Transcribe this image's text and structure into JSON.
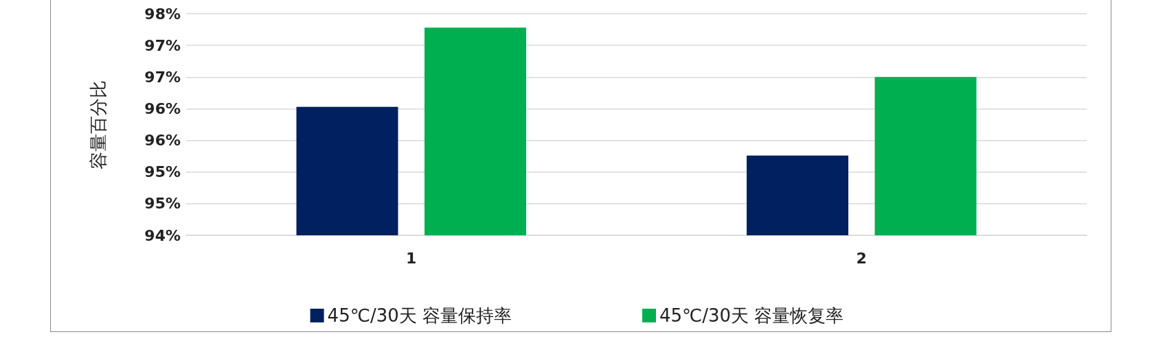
{
  "chart_data": {
    "type": "bar",
    "ylabel": "容量百分比",
    "categories": [
      "1",
      "2"
    ],
    "series": [
      {
        "name": "45℃/30天 容量保持率",
        "color": "#002060",
        "values": [
          96.03,
          95.26
        ]
      },
      {
        "name": "45℃/30天 容量恢复率",
        "color": "#00b050",
        "values": [
          97.28,
          96.5
        ]
      }
    ],
    "ylim": [
      94,
      97.5
    ],
    "yticks": [
      {
        "value": 94,
        "label": "94%"
      },
      {
        "value": 94.5,
        "label": "95%"
      },
      {
        "value": 95,
        "label": "95%"
      },
      {
        "value": 95.5,
        "label": "96%"
      },
      {
        "value": 96,
        "label": "96%"
      },
      {
        "value": 96.5,
        "label": "97%"
      },
      {
        "value": 97,
        "label": "97%"
      },
      {
        "value": 97.5,
        "label": "98%"
      }
    ],
    "grid": "y",
    "legend": "bottom"
  }
}
